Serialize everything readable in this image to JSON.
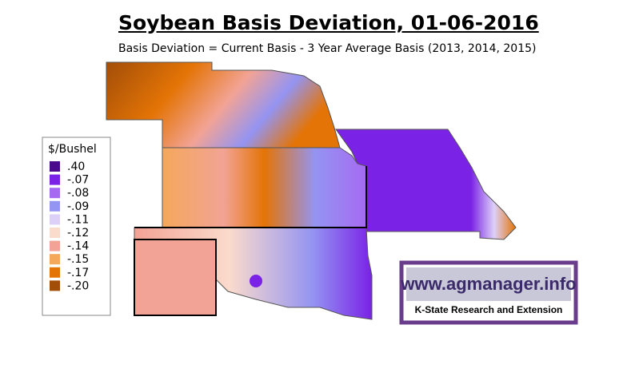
{
  "title": "Soybean Basis Deviation, 01-06-2016",
  "subtitle": "Basis Deviation = Current Basis - 3 Year Average Basis (2013, 2014, 2015)",
  "legend": {
    "title": "$/Bushel",
    "items": [
      {
        "label": ".40",
        "color": "#4b0a8c"
      },
      {
        "label": "-.07",
        "color": "#7a22e6"
      },
      {
        "label": "-.08",
        "color": "#a66af2"
      },
      {
        "label": "-.09",
        "color": "#9494f2"
      },
      {
        "label": "-.11",
        "color": "#ddd0f8"
      },
      {
        "label": "-.12",
        "color": "#fadbcc"
      },
      {
        "label": "-.14",
        "color": "#f2a395"
      },
      {
        "label": "-.15",
        "color": "#f4a85a"
      },
      {
        "label": "-.17",
        "color": "#e47406"
      },
      {
        "label": "-.20",
        "color": "#a24e08"
      }
    ]
  },
  "logo": {
    "url": "www.agmanager.info",
    "org": "K-State Research and Extension"
  }
}
